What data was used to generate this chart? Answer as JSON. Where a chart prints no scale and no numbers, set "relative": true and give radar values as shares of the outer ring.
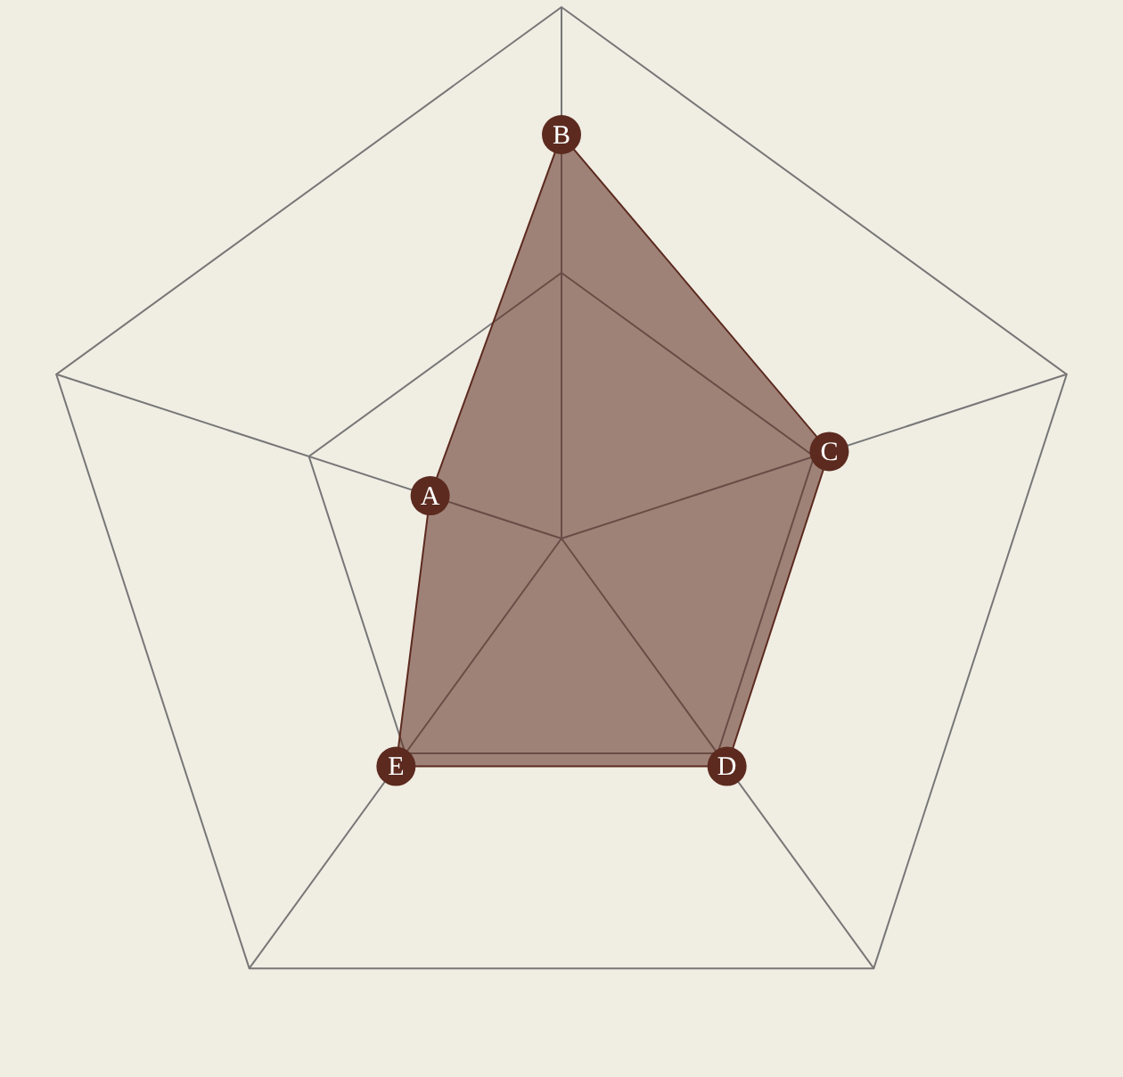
{
  "chart_data": {
    "type": "radar",
    "relative": true,
    "categories": [
      "B",
      "C",
      "D",
      "E",
      "A"
    ],
    "series": [
      {
        "color": "#5c2a1f",
        "values": [
          0.76,
          0.53,
          0.53,
          0.53,
          0.26
        ]
      }
    ],
    "marker": "circle",
    "grid": true,
    "legend": false
  }
}
